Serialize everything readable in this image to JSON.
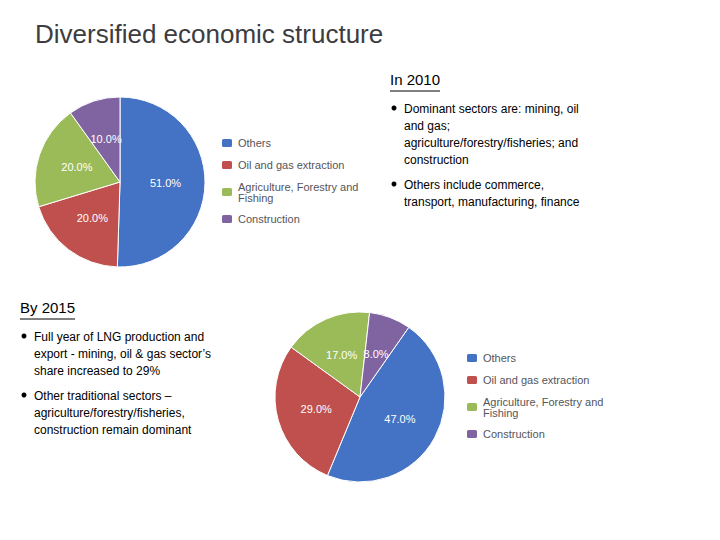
{
  "chart_data": [
    {
      "type": "pie",
      "title": "Diversified economic structure",
      "subtitle": "In 2010",
      "annotations": [
        "Dominant sectors are: mining, oil\nand gas;\nagriculture/forestry/fisheries; and\nconstruction",
        "Others include commerce,\ntransport, manufacturing, finance"
      ],
      "categories": [
        "Others",
        "Oil and gas extraction",
        "Agriculture, Forestry and\nFishing",
        "Construction"
      ],
      "values": [
        51.0,
        20.0,
        20.0,
        10.0
      ],
      "value_labels": [
        "51.0%",
        "20.0%",
        "20.0%",
        "10.0%"
      ],
      "colors": [
        "#4472C4",
        "#C0504D",
        "#9BBB59",
        "#8064A2"
      ],
      "data_labels": true,
      "legend": "right"
    },
    {
      "type": "pie",
      "subtitle": "By 2015",
      "annotations": [
        "Full year of LNG production and\nexport - mining, oil & gas sector’s\nshare increased to 29%",
        "Other traditional sectors –\nagriculture/forestry/fisheries,\nconstruction remain dominant"
      ],
      "categories": [
        "Others",
        "Oil and gas extraction",
        "Agriculture, Forestry and\nFishing",
        "Construction"
      ],
      "values": [
        47.0,
        29.0,
        17.0,
        8.0
      ],
      "value_labels": [
        "47.0%",
        "29.0%",
        "17.0%",
        "8.0%"
      ],
      "colors": [
        "#4472C4",
        "#C0504D",
        "#9BBB59",
        "#8064A2"
      ],
      "data_labels": true,
      "legend": "right"
    }
  ]
}
